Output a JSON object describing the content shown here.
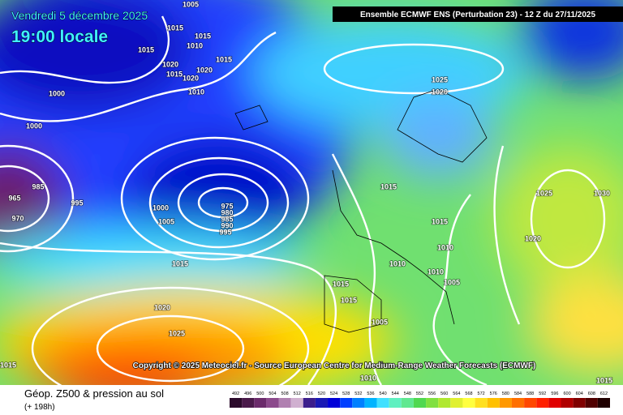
{
  "header": {
    "date": "Vendredi 5 décembre 2025",
    "time": "19:00 locale",
    "model": "Ensemble ECMWF ENS  (Perturbation 23)  -  12 Z du 27/11/2025",
    "copyright": "Copyright © 2025 Meteociel.fr - Source European Centre for Medium-Range Weather Forecasts (ECMWF)"
  },
  "footer": {
    "title": "Géop. Z500 & pression au sol",
    "lead": "(+ 198h)"
  },
  "isobar_labels": [
    1005,
    1015,
    1015,
    1010,
    1015,
    1015,
    1020,
    1020,
    1015,
    1020,
    1010,
    1000,
    1000,
    1025,
    1020,
    985,
    965,
    970,
    995,
    1000,
    1005,
    975,
    980,
    985,
    990,
    995,
    1015,
    1025,
    1030,
    1015,
    1020,
    1010,
    1010,
    1010,
    1005,
    1015,
    1015,
    1015,
    1020,
    1025,
    1005,
    1015,
    1010,
    1015
  ],
  "colorbar": {
    "values": [
      492,
      496,
      500,
      504,
      508,
      512,
      516,
      520,
      524,
      528,
      532,
      536,
      540,
      544,
      548,
      552,
      556,
      560,
      564,
      568,
      572,
      576,
      580,
      584,
      588,
      592,
      596,
      600,
      604,
      608,
      612
    ],
    "colors": [
      "#2b0a2b",
      "#4a1a4a",
      "#6b2b6b",
      "#8c4a8c",
      "#b080b0",
      "#d0b0d0",
      "#3c1e8c",
      "#1a1ab4",
      "#0000d8",
      "#0040ff",
      "#0080ff",
      "#00b4ff",
      "#40e0ff",
      "#60f0c0",
      "#60e890",
      "#50d850",
      "#80e040",
      "#b0e830",
      "#e0f030",
      "#ffff40",
      "#ffe020",
      "#ffc000",
      "#ff9800",
      "#ff7000",
      "#ff4800",
      "#ff2000",
      "#e00000",
      "#b00000",
      "#800000",
      "#500000",
      "#200000"
    ]
  }
}
